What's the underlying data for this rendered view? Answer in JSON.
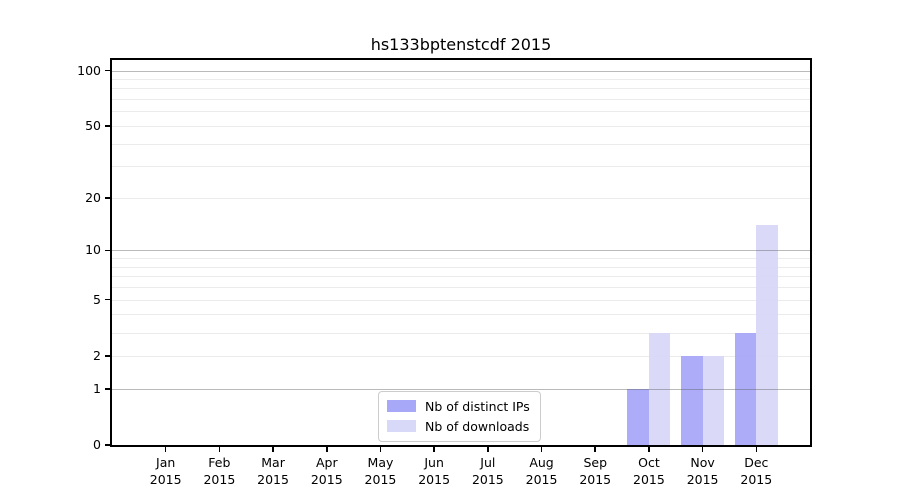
{
  "chart_data": {
    "type": "bar",
    "title": "hs133bptenstcdf 2015",
    "categories": [
      "Jan 2015",
      "Feb 2015",
      "Mar 2015",
      "Apr 2015",
      "May 2015",
      "Jun 2015",
      "Jul 2015",
      "Aug 2015",
      "Sep 2015",
      "Oct 2015",
      "Nov 2015",
      "Dec 2015"
    ],
    "x_tick_months": [
      "Jan",
      "Feb",
      "Mar",
      "Apr",
      "May",
      "Jun",
      "Jul",
      "Aug",
      "Sep",
      "Oct",
      "Nov",
      "Dec"
    ],
    "x_tick_year": "2015",
    "series": [
      {
        "name": "Nb of distinct IPs",
        "color": "#a8a8f8",
        "values": [
          0,
          0,
          0,
          0,
          0,
          0,
          0,
          0,
          0,
          1,
          2,
          3
        ]
      },
      {
        "name": "Nb of downloads",
        "color": "#d8d8f8",
        "values": [
          0,
          0,
          0,
          0,
          0,
          0,
          0,
          0,
          0,
          3,
          2,
          14
        ]
      }
    ],
    "yscale": "log1p",
    "yticks": [
      0,
      1,
      2,
      5,
      10,
      20,
      50,
      100
    ],
    "major_gridlines": [
      1,
      10,
      100
    ],
    "minor_gridlines": [
      2,
      3,
      4,
      5,
      6,
      7,
      8,
      9,
      20,
      30,
      40,
      50,
      60,
      70,
      80,
      90
    ],
    "ylim": [
      0,
      114
    ],
    "xlabel": "",
    "ylabel": "",
    "grid": true,
    "legend_position": "lower center"
  },
  "legend": {
    "items": [
      {
        "label": "Nb of distinct IPs",
        "color": "#a8a8f8"
      },
      {
        "label": "Nb of downloads",
        "color": "#d8d8f8"
      }
    ]
  },
  "colors": {
    "background": "#ffffff",
    "axis": "#000000",
    "bar_distinct_ips": "#a8a8f8",
    "bar_downloads": "#d8d8f8"
  }
}
